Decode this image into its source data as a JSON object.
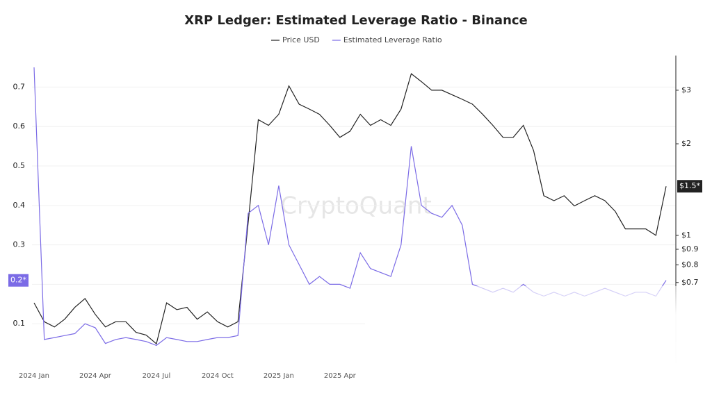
{
  "chart_data": {
    "type": "line",
    "title": "XRP Ledger: Estimated Leverage Ratio - Binance",
    "watermark": "CryptoQuant",
    "categories": [
      "2024 Jan",
      null,
      null,
      null,
      null,
      null,
      "2024 Apr",
      null,
      null,
      null,
      null,
      null,
      "2024 Jul",
      null,
      null,
      null,
      null,
      null,
      "2024 Oct",
      null,
      null,
      null,
      null,
      null,
      "2025 Jan",
      null,
      null,
      null,
      null,
      null,
      "2025 Apr",
      null,
      null,
      null,
      null,
      null,
      null,
      null,
      null,
      null,
      null,
      null,
      null,
      null,
      null,
      null,
      null,
      null,
      null,
      null,
      null,
      null,
      null,
      null,
      null,
      null,
      null,
      null,
      null,
      null,
      null,
      null,
      null
    ],
    "series": [
      {
        "name": "Price USD",
        "color": "#222222",
        "axis": "y2",
        "values": [
          0.6,
          0.52,
          0.5,
          0.53,
          0.58,
          0.62,
          0.55,
          0.5,
          0.52,
          0.52,
          0.48,
          0.47,
          0.44,
          0.6,
          0.57,
          0.58,
          0.53,
          0.56,
          0.52,
          0.5,
          0.52,
          1.1,
          2.4,
          2.3,
          2.5,
          3.1,
          2.7,
          2.6,
          2.5,
          2.3,
          2.1,
          2.2,
          2.5,
          2.3,
          2.4,
          2.3,
          2.6,
          3.4,
          3.2,
          3.0,
          3.0,
          2.9,
          2.8,
          2.7,
          2.5,
          2.3,
          2.1,
          2.1,
          2.3,
          1.9,
          1.35,
          1.3,
          1.35,
          1.25,
          1.3,
          1.35,
          1.3,
          1.2,
          1.05,
          1.05,
          1.05,
          1.0,
          1.45
        ]
      },
      {
        "name": "Estimated Leverage Ratio",
        "color": "#7b6be6",
        "axis": "y",
        "values": [
          0.75,
          0.06,
          0.065,
          0.07,
          0.075,
          0.1,
          0.09,
          0.05,
          0.06,
          0.065,
          0.06,
          0.055,
          0.045,
          0.065,
          0.06,
          0.055,
          0.055,
          0.06,
          0.065,
          0.065,
          0.07,
          0.38,
          0.4,
          0.3,
          0.45,
          0.3,
          0.25,
          0.2,
          0.22,
          0.2,
          0.2,
          0.19,
          0.28,
          0.24,
          0.23,
          0.22,
          0.3,
          0.55,
          0.4,
          0.38,
          0.37,
          0.4,
          0.35,
          0.2,
          0.19,
          0.18,
          0.19,
          0.18,
          0.2,
          0.18,
          0.17,
          0.18,
          0.17,
          0.18,
          0.17,
          0.18,
          0.19,
          0.18,
          0.17,
          0.18,
          0.18,
          0.17,
          0.21
        ]
      }
    ],
    "ylim": [
      0,
      0.78
    ],
    "yticks": [
      0.1,
      0.2,
      0.3,
      0.4,
      0.5,
      0.6,
      0.7
    ],
    "y2lim": [
      0.38,
      3.9
    ],
    "y2scale": "log",
    "y2ticks": [
      {
        "value": 0.7,
        "label": "$0.7"
      },
      {
        "value": 0.8,
        "label": "$0.8"
      },
      {
        "value": 0.9,
        "label": "$0.9"
      },
      {
        "value": 1,
        "label": "$1"
      },
      {
        "value": 2,
        "label": "$2"
      },
      {
        "value": 3,
        "label": "$3"
      }
    ],
    "annotations": [
      "0.2*",
      "$1.5*"
    ],
    "grid": true,
    "legend": "top"
  }
}
